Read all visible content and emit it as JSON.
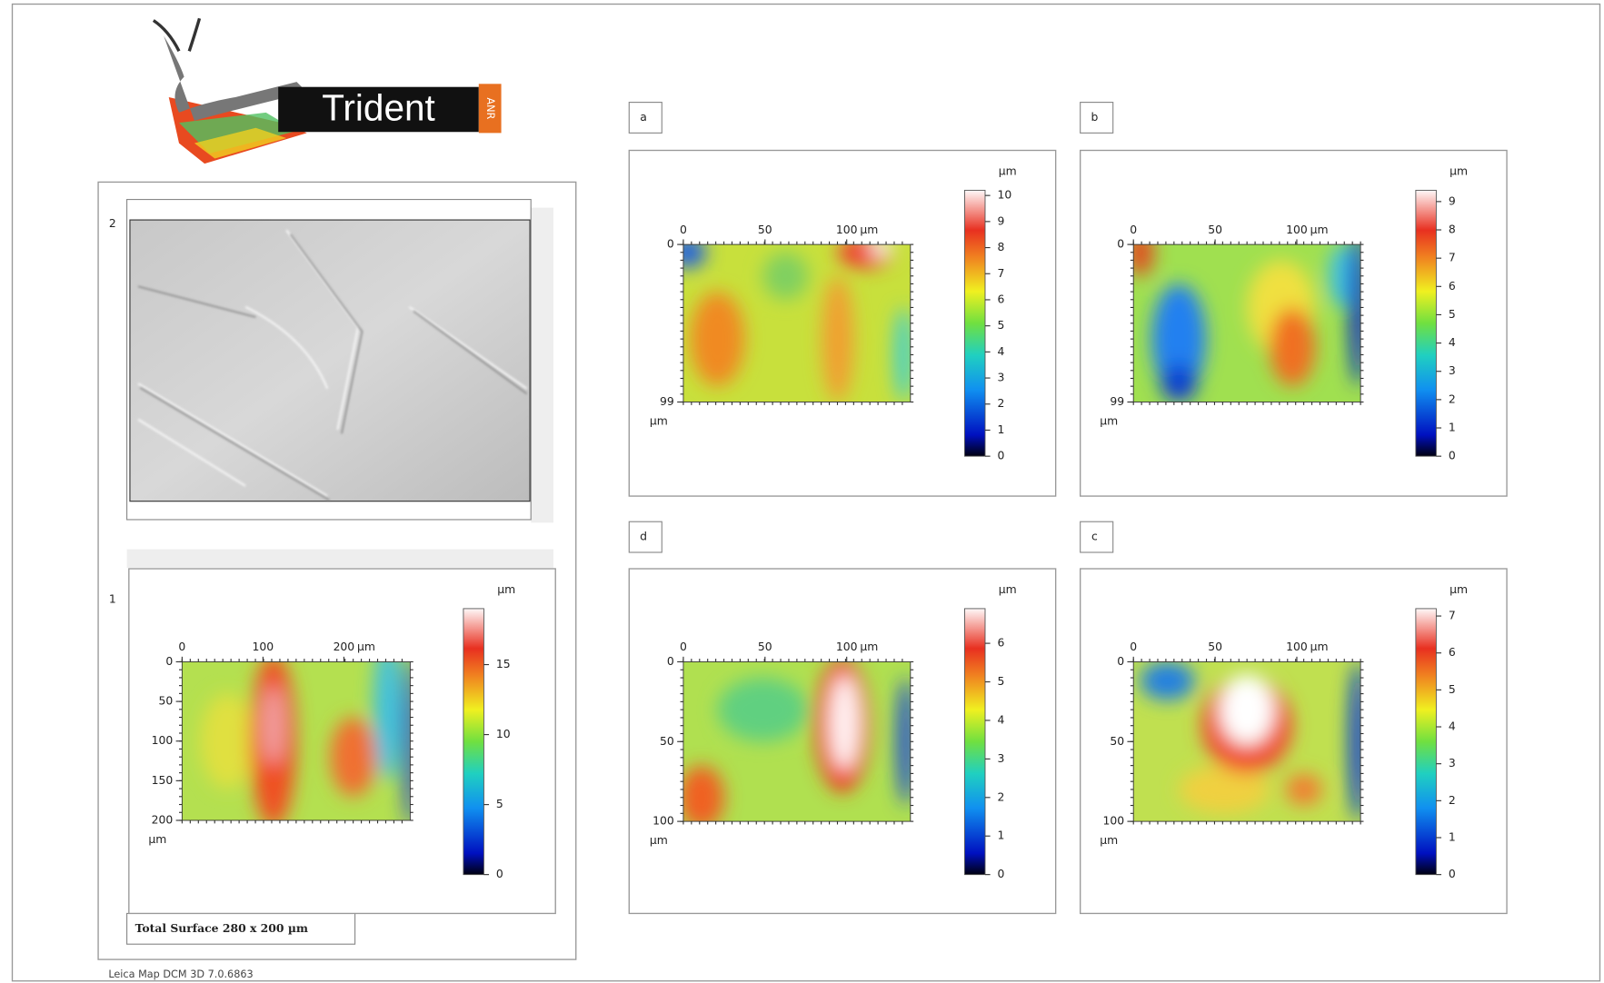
{
  "logo": {
    "text": "Trident",
    "badge": "ANR"
  },
  "image_panel": {
    "label": "2"
  },
  "total_surface": "Total Surface 280 x 200 µm",
  "footer": "Leica Map DCM 3D 7.0.6863",
  "maps": [
    {
      "label": "1",
      "xlim": [
        0,
        282
      ],
      "xticks": [
        0,
        100,
        200
      ],
      "x_unit": "µm",
      "ylim": [
        0,
        200
      ],
      "yticks": [
        0,
        50,
        100,
        150,
        200
      ],
      "y_unit": "µm",
      "clim": [
        0,
        19
      ],
      "cticks": [
        0,
        5,
        10,
        15
      ],
      "c_unit": "µm"
    },
    {
      "label": "a",
      "xlim": [
        0,
        139
      ],
      "xticks": [
        0,
        50,
        100
      ],
      "x_unit": "µm",
      "ylim": [
        0,
        99
      ],
      "yticks": [
        0,
        99
      ],
      "y_unit": "µm",
      "clim": [
        0,
        10.2
      ],
      "cticks": [
        0,
        1,
        2,
        3,
        4,
        5,
        6,
        7,
        8,
        9,
        10
      ],
      "c_unit": "µm"
    },
    {
      "label": "b",
      "xlim": [
        0,
        139
      ],
      "xticks": [
        0,
        50,
        100
      ],
      "x_unit": "µm",
      "ylim": [
        0,
        99
      ],
      "yticks": [
        0,
        99
      ],
      "y_unit": "µm",
      "clim": [
        0,
        9.4
      ],
      "cticks": [
        0,
        1,
        2,
        3,
        4,
        5,
        6,
        7,
        8,
        9
      ],
      "c_unit": "µm"
    },
    {
      "label": "d",
      "xlim": [
        0,
        139
      ],
      "xticks": [
        0,
        50,
        100
      ],
      "x_unit": "µm",
      "ylim": [
        0,
        100
      ],
      "yticks": [
        0,
        50,
        100
      ],
      "y_unit": "µm",
      "clim": [
        0,
        6.9
      ],
      "cticks": [
        0,
        1,
        2,
        3,
        4,
        5,
        6
      ],
      "c_unit": "µm"
    },
    {
      "label": "c",
      "xlim": [
        0,
        139
      ],
      "xticks": [
        0,
        50,
        100
      ],
      "x_unit": "µm",
      "ylim": [
        0,
        100
      ],
      "yticks": [
        0,
        50,
        100
      ],
      "y_unit": "µm",
      "clim": [
        0,
        7.2
      ],
      "cticks": [
        0,
        1,
        2,
        3,
        4,
        5,
        6,
        7
      ],
      "c_unit": "µm"
    }
  ]
}
